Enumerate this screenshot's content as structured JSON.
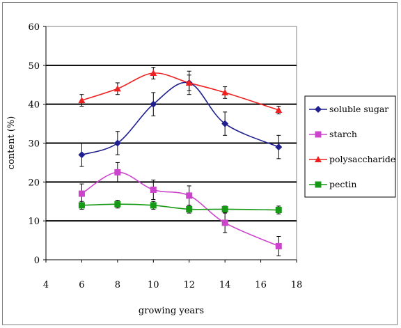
{
  "chart_data": {
    "type": "line",
    "xlabel": "growing years",
    "ylabel": "content (%)",
    "xlim": [
      4,
      18
    ],
    "ylim": [
      0,
      60
    ],
    "xticks": [
      4,
      6,
      8,
      10,
      12,
      14,
      16,
      18
    ],
    "yticks": [
      0,
      10,
      20,
      30,
      40,
      50,
      60
    ],
    "grid": "horizontal",
    "legend_position": "right",
    "x": [
      6,
      8,
      10,
      12,
      14,
      17
    ],
    "series": [
      {
        "name": "soluble sugar",
        "color": "#1f1f8f",
        "marker": "diamond",
        "values": [
          27,
          30,
          40,
          45.5,
          35,
          29
        ],
        "errors": [
          3,
          3,
          3,
          3,
          3,
          3
        ]
      },
      {
        "name": "starch",
        "color": "#cc44cc",
        "marker": "square",
        "values": [
          17,
          22.5,
          18,
          16.5,
          9.5,
          3.5
        ],
        "errors": [
          2.5,
          2.5,
          2.5,
          2.5,
          2.5,
          2.5
        ]
      },
      {
        "name": "polysaccharide",
        "color": "#ee2020",
        "marker": "triangle",
        "values": [
          41,
          44,
          48,
          45.5,
          43,
          38.5
        ],
        "errors": [
          1.5,
          1.5,
          1.5,
          2,
          1.5,
          1
        ]
      },
      {
        "name": "pectin",
        "color": "#169a16",
        "marker": "square",
        "values": [
          14,
          14.3,
          14,
          13,
          13,
          12.8
        ],
        "errors": [
          1,
          1,
          1,
          1,
          0.8,
          1
        ]
      }
    ]
  }
}
